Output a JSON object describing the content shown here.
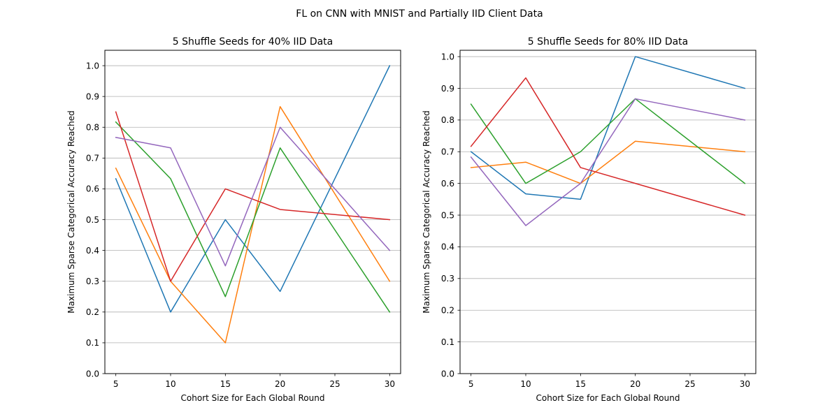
{
  "figure": {
    "suptitle": "FL on CNN with MNIST and Partially IID Client Data"
  },
  "chart_data": [
    {
      "type": "line",
      "title": "5 Shuffle Seeds for 40% IID Data",
      "xlabel": "Cohort Size for Each Global Round",
      "ylabel": "Maximum Sparse Categorical Accuracy Reached",
      "x": [
        5,
        10,
        15,
        20,
        30
      ],
      "xlim": [
        4,
        31
      ],
      "ylim": [
        0,
        1.05
      ],
      "xticks": [
        5,
        10,
        15,
        20,
        25,
        30
      ],
      "yticks": [
        0.0,
        0.1,
        0.2,
        0.3,
        0.4,
        0.5,
        0.6,
        0.7,
        0.8,
        0.9,
        1.0
      ],
      "grid": "y",
      "series": [
        {
          "color": "#1f77b4",
          "values": [
            0.633,
            0.2,
            0.5,
            0.267,
            1.0
          ]
        },
        {
          "color": "#ff7f0e",
          "values": [
            0.667,
            0.3,
            0.1,
            0.867,
            0.3
          ]
        },
        {
          "color": "#2ca02c",
          "values": [
            0.817,
            0.633,
            0.25,
            0.733,
            0.2
          ]
        },
        {
          "color": "#d62728",
          "values": [
            0.85,
            0.3,
            0.6,
            0.533,
            0.5
          ]
        },
        {
          "color": "#9467bd",
          "values": [
            0.767,
            0.733,
            0.35,
            0.8,
            0.4
          ]
        }
      ]
    },
    {
      "type": "line",
      "title": "5 Shuffle Seeds for 80% IID Data",
      "xlabel": "Cohort Size for Each Global Round",
      "ylabel": "Maximum Sparse Categorical Accuracy Reached",
      "x": [
        5,
        10,
        15,
        20,
        30
      ],
      "xlim": [
        4,
        31
      ],
      "ylim": [
        0,
        1.02
      ],
      "xticks": [
        5,
        10,
        15,
        20,
        25,
        30
      ],
      "yticks": [
        0.0,
        0.1,
        0.2,
        0.3,
        0.4,
        0.5,
        0.6,
        0.7,
        0.8,
        0.9,
        1.0
      ],
      "grid": "y",
      "series": [
        {
          "color": "#1f77b4",
          "values": [
            0.7,
            0.567,
            0.55,
            1.0,
            0.9
          ]
        },
        {
          "color": "#ff7f0e",
          "values": [
            0.65,
            0.667,
            0.6,
            0.733,
            0.7
          ]
        },
        {
          "color": "#2ca02c",
          "values": [
            0.85,
            0.6,
            0.7,
            0.867,
            0.6
          ]
        },
        {
          "color": "#d62728",
          "values": [
            0.717,
            0.933,
            0.65,
            0.6,
            0.5
          ]
        },
        {
          "color": "#9467bd",
          "values": [
            0.683,
            0.467,
            0.6,
            0.867,
            0.8
          ]
        }
      ]
    }
  ]
}
